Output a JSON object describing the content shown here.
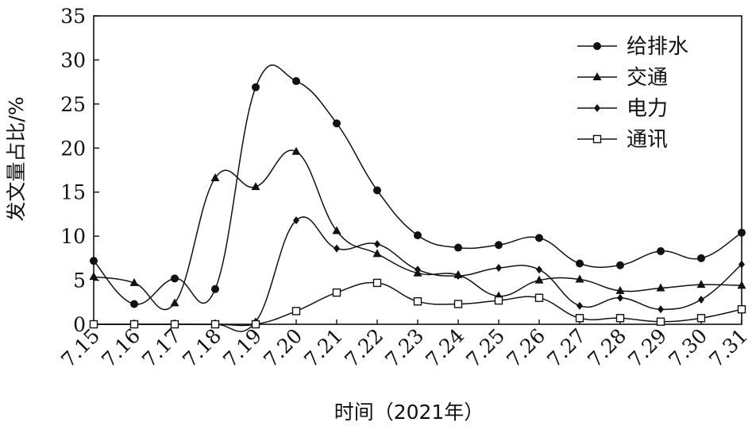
{
  "chart_data": {
    "type": "line",
    "xlabel": "时间（2021年）",
    "ylabel": "发文量占比/%",
    "ylim": [
      0,
      35
    ],
    "yticks": [
      0,
      5,
      10,
      15,
      20,
      25,
      30,
      35
    ],
    "categories": [
      "7.15",
      "7.16",
      "7.17",
      "7.18",
      "7.19",
      "7.20",
      "7.21",
      "7.22",
      "7.23",
      "7.24",
      "7.25",
      "7.26",
      "7.27",
      "7.28",
      "7.29",
      "7.30",
      "7.31"
    ],
    "legend_position": "top-right",
    "grid": false,
    "series": [
      {
        "name": "给排水",
        "marker": "circle",
        "values": [
          7.2,
          2.3,
          5.2,
          4.0,
          26.9,
          27.6,
          22.8,
          15.2,
          10.1,
          8.7,
          9.0,
          9.8,
          6.9,
          6.7,
          8.3,
          7.5,
          10.4
        ]
      },
      {
        "name": "交通",
        "marker": "triangle",
        "values": [
          5.4,
          4.7,
          2.4,
          16.6,
          15.6,
          19.6,
          10.6,
          8.0,
          5.8,
          5.6,
          3.2,
          5.0,
          5.1,
          3.8,
          4.1,
          4.5,
          4.4
        ]
      },
      {
        "name": "电力",
        "marker": "diamond",
        "values": [
          0.0,
          0.0,
          0.0,
          0.0,
          0.3,
          11.8,
          8.6,
          9.1,
          6.2,
          5.5,
          6.4,
          6.2,
          2.1,
          3.0,
          1.7,
          2.8,
          6.8
        ]
      },
      {
        "name": "通讯",
        "marker": "square-open",
        "values": [
          0.0,
          0.0,
          0.0,
          0.0,
          0.0,
          1.5,
          3.6,
          4.7,
          2.6,
          2.3,
          2.7,
          3.0,
          0.7,
          0.7,
          0.3,
          0.7,
          1.7
        ]
      }
    ]
  }
}
